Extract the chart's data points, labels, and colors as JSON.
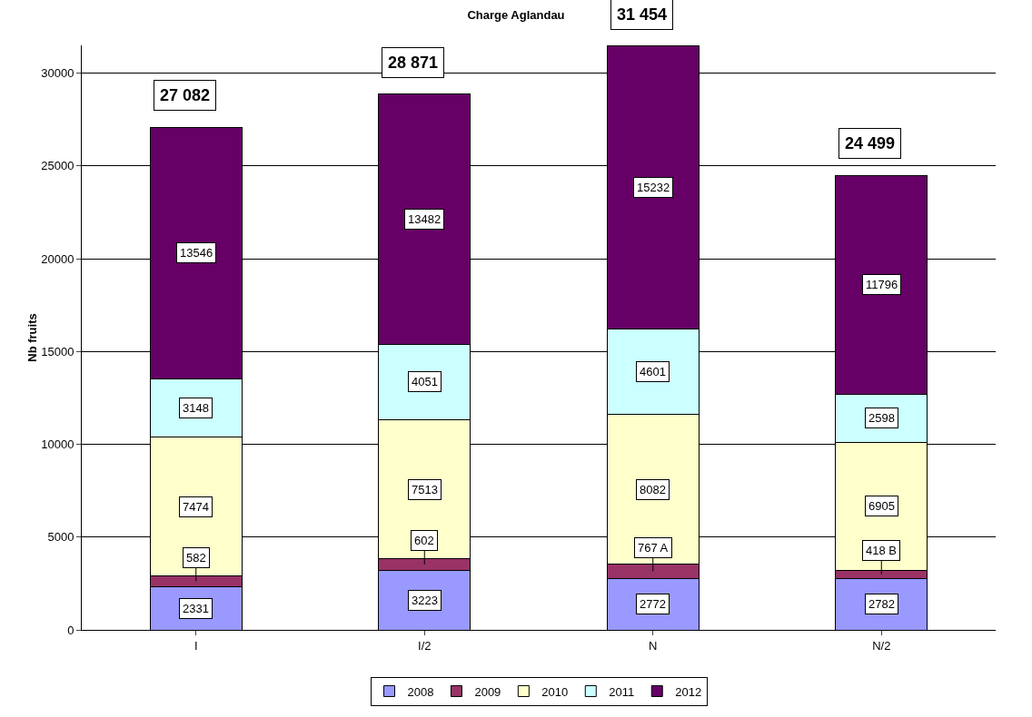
{
  "chart_data": {
    "type": "bar",
    "title": "Charge Aglandau",
    "ylabel": "Nb fruits",
    "categories": [
      "I",
      "I/2",
      "N",
      "N/2"
    ],
    "stacked": true,
    "series": [
      {
        "name": "2008",
        "color": "#9999ff",
        "values": [
          2331,
          3223,
          2772,
          2782
        ],
        "value_labels": [
          "2331",
          "3223",
          "2772",
          "2782"
        ]
      },
      {
        "name": "2009",
        "color": "#993366",
        "values": [
          582,
          602,
          767,
          418
        ],
        "value_labels": [
          "582",
          "602",
          "767 A",
          "418 B"
        ]
      },
      {
        "name": "2010",
        "color": "#ffffcc",
        "values": [
          7474,
          7513,
          8082,
          6905
        ],
        "value_labels": [
          "7474",
          "7513",
          "8082",
          "6905"
        ]
      },
      {
        "name": "2011",
        "color": "#ccffff",
        "values": [
          3148,
          4051,
          4601,
          2598
        ],
        "value_labels": [
          "3148",
          "4051",
          "4601",
          "2598"
        ]
      },
      {
        "name": "2012",
        "color": "#660066",
        "values": [
          13546,
          13482,
          15232,
          11796
        ],
        "value_labels": [
          "13546",
          "13482",
          "15232",
          "11796"
        ]
      }
    ],
    "totals": [
      "27 082",
      "28 871",
      "31 454",
      "24 499"
    ],
    "ylim": [
      0,
      31500
    ],
    "yticks": [
      0,
      5000,
      10000,
      15000,
      20000,
      25000,
      30000
    ],
    "grid": "y",
    "legend": "bottom"
  }
}
